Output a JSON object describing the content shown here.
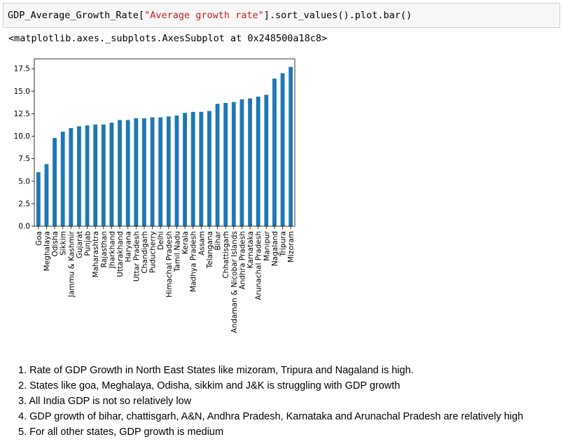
{
  "code_cell": {
    "prefix": "GDP_Average_Growth_Rate[",
    "string_literal": "\"Average growth rate\"",
    "suffix": "].sort_values().plot.bar()"
  },
  "output_text": "<matplotlib.axes._subplots.AxesSubplot at 0x248500a18c8>",
  "chart_data": {
    "type": "bar",
    "bar_color": "#1f77b4",
    "categories": [
      "Goa",
      "Meghalaya",
      "Odisha",
      "Sikkim",
      "Jammu & Kashmir",
      "Gujarat",
      "Punjab",
      "Maharashtra",
      "Rajasthan",
      "Jharkhand",
      "Uttarakhand",
      "Haryana",
      "Uttar Pradesh",
      "Chandigarh",
      "Puducherry",
      "Delhi",
      "Himachal Pradesh",
      "Tamil Nadu",
      "Kerala",
      "Madhya Pradesh",
      "Assam",
      "Telangana",
      "Bihar",
      "Chhattisgarh",
      "Andaman & Nicobar Islands",
      "Andhra Pradesh",
      "Karnataka",
      "Arunachal Pradesh",
      "Manipur",
      "Nagaland",
      "Tripura",
      "Mizoram"
    ],
    "values": [
      6.0,
      6.9,
      9.8,
      10.5,
      10.9,
      11.1,
      11.2,
      11.3,
      11.3,
      11.5,
      11.8,
      11.8,
      12.0,
      12.0,
      12.1,
      12.1,
      12.2,
      12.3,
      12.6,
      12.7,
      12.7,
      12.8,
      13.6,
      13.7,
      13.8,
      14.1,
      14.2,
      14.4,
      14.6,
      16.4,
      17.0,
      17.7
    ],
    "yticks": [
      "0.0",
      "2.5",
      "5.0",
      "7.5",
      "10.0",
      "12.5",
      "15.0",
      "17.5"
    ],
    "ylim": [
      0,
      18.6
    ],
    "xlabel": "",
    "ylabel": "",
    "title": ""
  },
  "observations": [
    "1. Rate of GDP Growth in North East States like mizoram, Tripura and Nagaland is high.",
    "2. States like goa, Meghalaya, Odisha, sikkim and J&K is struggling with GDP growth",
    "3. All India GDP is not so relatively low",
    "4. GDP growth of bihar, chattisgarh, A&N, Andhra Pradesh, Karnataka and Arunachal Pradesh are relatively high",
    "5. For all other states, GDP growth is medium"
  ]
}
